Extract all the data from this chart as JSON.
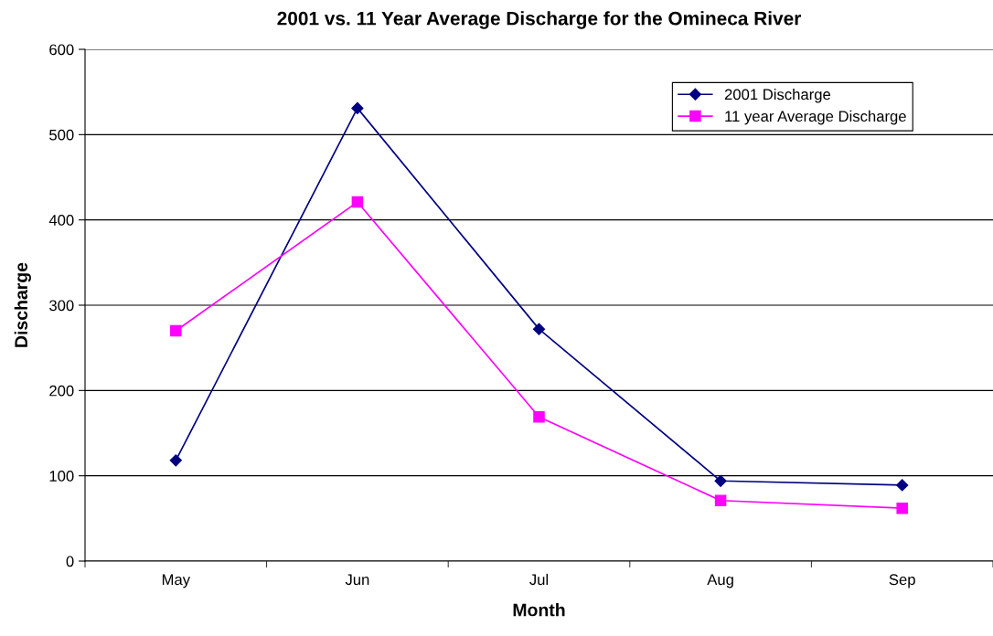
{
  "chart_data": {
    "type": "line",
    "title": "2001 vs. 11 Year Average Discharge for the Omineca River",
    "xlabel": "Month",
    "ylabel": "Discharge",
    "categories": [
      "May",
      "Jun",
      "Jul",
      "Aug",
      "Sep"
    ],
    "series": [
      {
        "name": "2001 Discharge",
        "color": "#000080",
        "marker": "diamond",
        "values": [
          118,
          531,
          272,
          94,
          89
        ]
      },
      {
        "name": "11 year Average Discharge",
        "color": "#ff00ff",
        "marker": "square",
        "values": [
          270,
          421,
          169,
          71,
          62
        ]
      }
    ],
    "ylim": [
      0,
      600
    ],
    "yticks": [
      0,
      100,
      200,
      300,
      400,
      500,
      600
    ],
    "grid": "y",
    "legend": "top right",
    "line_style": "solid"
  }
}
